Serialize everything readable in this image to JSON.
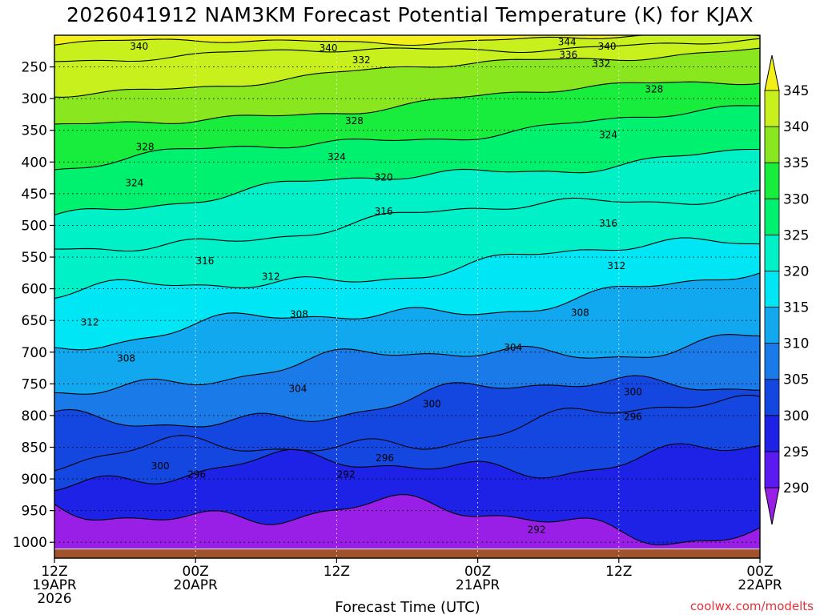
{
  "chart_data": {
    "type": "heatmap",
    "title": "2026041912 NAM3KM Forecast Potential Temperature (K) for KJAX",
    "xlabel": "Forecast Time (UTC)",
    "ylabel": "",
    "x_range_hours": [
      0,
      60
    ],
    "x_ticks": [
      {
        "hour": 0,
        "label": [
          "12Z",
          "19APR",
          "2026"
        ]
      },
      {
        "hour": 12,
        "label": [
          "00Z",
          "20APR"
        ]
      },
      {
        "hour": 24,
        "label": [
          "12Z"
        ]
      },
      {
        "hour": 36,
        "label": [
          "00Z",
          "21APR"
        ]
      },
      {
        "hour": 48,
        "label": [
          "12Z"
        ]
      },
      {
        "hour": 60,
        "label": [
          "00Z",
          "22APR"
        ]
      }
    ],
    "y_axis": {
      "type": "pressure_hPa",
      "inverted": true,
      "range": [
        1025,
        200
      ],
      "ticks": [
        250,
        300,
        350,
        400,
        450,
        500,
        550,
        600,
        650,
        700,
        750,
        800,
        850,
        900,
        950,
        1000
      ]
    },
    "colorbar": {
      "levels": [
        290,
        295,
        300,
        305,
        310,
        315,
        320,
        325,
        330,
        335,
        340,
        345
      ],
      "colors": [
        "#9a1fe6",
        "#5a1af0",
        "#1e22e6",
        "#1446e0",
        "#1a7ae8",
        "#12a8f0",
        "#00e6f4",
        "#00f0c8",
        "#00f070",
        "#18ec3c",
        "#8ae61e",
        "#c8f01c",
        "#f2f018"
      ],
      "extend": "both"
    },
    "contours": [
      {
        "value": 292,
        "p_start": 940,
        "p_end": 978
      },
      {
        "value": 296,
        "p_start": 900,
        "p_end": 858
      },
      {
        "value": 300,
        "p_start": 880,
        "p_end": 785
      },
      {
        "value": 304,
        "p_start": 820,
        "p_end": 737
      },
      {
        "value": 308,
        "p_start": 752,
        "p_end": 675
      },
      {
        "value": 312,
        "p_start": 690,
        "p_end": 585
      },
      {
        "value": 316,
        "p_start": 617,
        "p_end": 525
      },
      {
        "value": 320,
        "p_start": 542,
        "p_end": 443
      },
      {
        "value": 324,
        "p_start": 477,
        "p_end": 380
      },
      {
        "value": 328,
        "p_start": 408,
        "p_end": 318
      },
      {
        "value": 332,
        "p_start": 352,
        "p_end": 268
      },
      {
        "value": 336,
        "p_start": 294,
        "p_end": 220
      },
      {
        "value": 340,
        "p_start": 238,
        "p_end": 210
      },
      {
        "value": 344,
        "p_start": 214,
        "p_end": 202
      }
    ],
    "contour_labels": [
      {
        "value": "340",
        "hour": 7.2,
        "p": 218
      },
      {
        "value": "340",
        "hour": 23.3,
        "p": 220
      },
      {
        "value": "344",
        "hour": 43.6,
        "p": 211
      },
      {
        "value": "340",
        "hour": 47.0,
        "p": 218
      },
      {
        "value": "336",
        "hour": 43.7,
        "p": 231
      },
      {
        "value": "332",
        "hour": 26.1,
        "p": 239
      },
      {
        "value": "332",
        "hour": 46.5,
        "p": 245
      },
      {
        "value": "328",
        "hour": 51.0,
        "p": 285
      },
      {
        "value": "328",
        "hour": 25.5,
        "p": 335
      },
      {
        "value": "324",
        "hour": 47.1,
        "p": 357
      },
      {
        "value": "328",
        "hour": 7.7,
        "p": 376
      },
      {
        "value": "324",
        "hour": 24.0,
        "p": 392
      },
      {
        "value": "324",
        "hour": 6.8,
        "p": 433
      },
      {
        "value": "320",
        "hour": 28.0,
        "p": 424
      },
      {
        "value": "316",
        "hour": 28.0,
        "p": 478
      },
      {
        "value": "316",
        "hour": 47.1,
        "p": 497
      },
      {
        "value": "316",
        "hour": 12.8,
        "p": 556
      },
      {
        "value": "312",
        "hour": 47.8,
        "p": 564
      },
      {
        "value": "312",
        "hour": 18.4,
        "p": 581
      },
      {
        "value": "312",
        "hour": 3.0,
        "p": 653
      },
      {
        "value": "308",
        "hour": 20.8,
        "p": 640
      },
      {
        "value": "308",
        "hour": 44.7,
        "p": 638
      },
      {
        "value": "304",
        "hour": 39.0,
        "p": 693
      },
      {
        "value": "308",
        "hour": 6.1,
        "p": 710
      },
      {
        "value": "304",
        "hour": 20.7,
        "p": 758
      },
      {
        "value": "300",
        "hour": 32.1,
        "p": 782
      },
      {
        "value": "300",
        "hour": 49.2,
        "p": 763
      },
      {
        "value": "296",
        "hour": 28.1,
        "p": 867
      },
      {
        "value": "296",
        "hour": 49.2,
        "p": 802
      },
      {
        "value": "300",
        "hour": 9.0,
        "p": 880
      },
      {
        "value": "296",
        "hour": 12.1,
        "p": 893
      },
      {
        "value": "292",
        "hour": 24.8,
        "p": 893
      },
      {
        "value": "292",
        "hour": 41.0,
        "p": 980
      }
    ],
    "credit": "coolwx.com/modelts"
  }
}
